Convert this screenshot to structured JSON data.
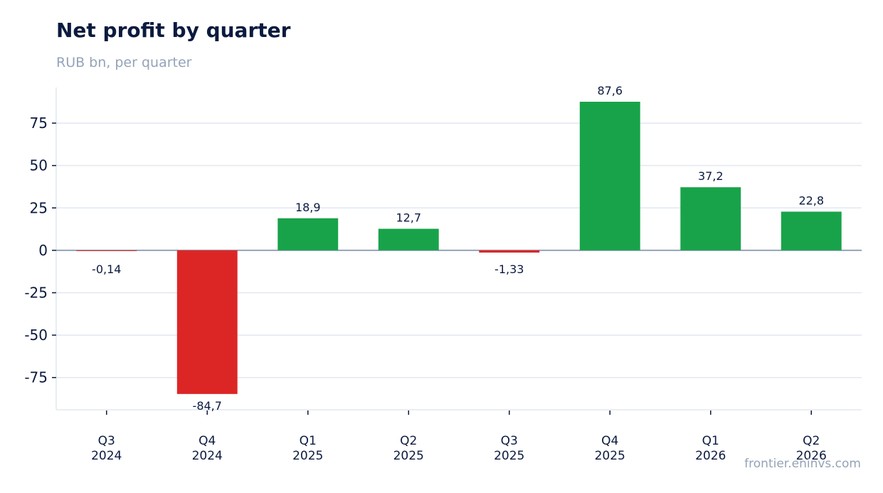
{
  "header": {
    "title": "Net profit by quarter",
    "subtitle": "RUB bn, per quarter"
  },
  "footer": {
    "source": "frontier.eninvs.com"
  },
  "colors": {
    "positive": "#18a34a",
    "negative": "#dc2626",
    "grid": "#e2e8f0",
    "zero_line": "#94a3b8",
    "text": "#0b1a3f"
  },
  "chart_data": {
    "type": "bar",
    "title": "Net profit by quarter",
    "subtitle": "RUB bn, per quarter",
    "xlabel": "",
    "ylabel": "",
    "categories": [
      [
        "Q3",
        "2024"
      ],
      [
        "Q4",
        "2024"
      ],
      [
        "Q1",
        "2025"
      ],
      [
        "Q2",
        "2025"
      ],
      [
        "Q3",
        "2025"
      ],
      [
        "Q4",
        "2025"
      ],
      [
        "Q1",
        "2026"
      ],
      [
        "Q2",
        "2026"
      ]
    ],
    "values": [
      -0.14,
      -84.7,
      18.9,
      12.7,
      -1.33,
      87.6,
      37.2,
      22.8
    ],
    "value_labels": [
      "-0,14",
      "-84,7",
      "18,9",
      "12,7",
      "-1,33",
      "87,6",
      "37,2",
      "22,8"
    ],
    "ylim": [
      -94,
      96
    ],
    "yticks": [
      75,
      50,
      25,
      0,
      -25,
      -50,
      -75
    ],
    "grid": true,
    "legend": "none"
  }
}
